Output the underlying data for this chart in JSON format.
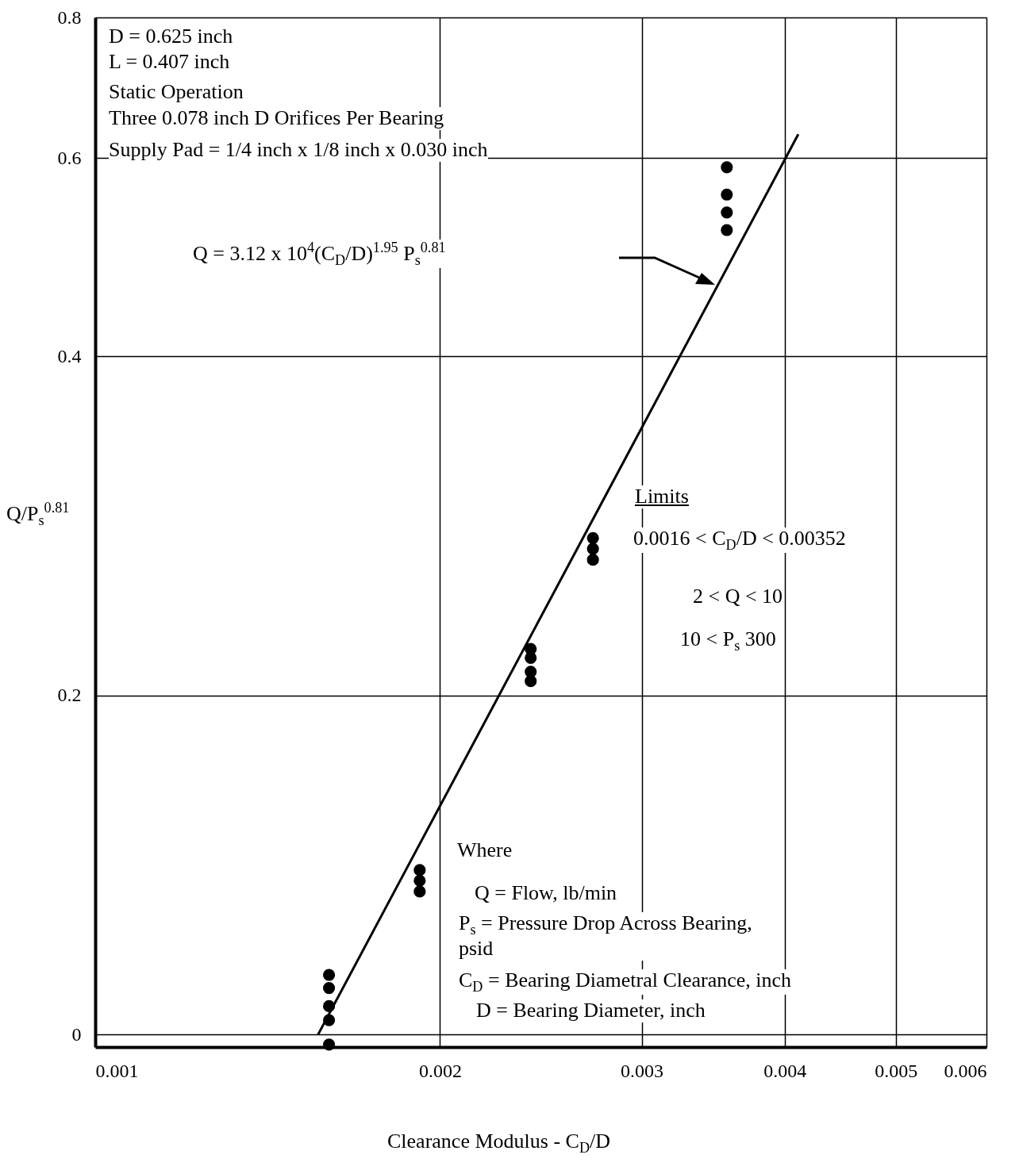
{
  "chart_data": {
    "type": "scatter",
    "xlabel": "Clearance Modulus - C$_{D}$/D",
    "ylabel": "Q/P$_{s}$$^{0.81}$",
    "log": "xy",
    "grid": true,
    "marker": "circle",
    "xlim": [
      0.001,
      0.006
    ],
    "ylim": [
      0.0975,
      0.8
    ],
    "xticks": [
      0.001,
      0.002,
      0.003,
      0.004,
      0.005,
      0.006
    ],
    "yticks": [
      {
        "value": 0.1,
        "label": "0"
      },
      0.2,
      0.4,
      0.6,
      0.8
    ],
    "x": [
      0.0016,
      0.0016,
      0.0016,
      0.0016,
      0.0016,
      0.00192,
      0.00192,
      0.00192,
      0.0024,
      0.0024,
      0.0024,
      0.0024,
      0.00272,
      0.00272,
      0.00272,
      0.00356,
      0.00356,
      0.00356,
      0.00356
    ],
    "series": [
      {
        "color": "#000000",
        "values": [
          0.113,
          0.11,
          0.106,
          0.103,
          0.098,
          0.14,
          0.137,
          0.134,
          0.22,
          0.216,
          0.21,
          0.206,
          0.276,
          0.27,
          0.264,
          0.589,
          0.557,
          0.537,
          0.518
        ]
      },
      {
        "type": "line",
        "marker": "none",
        "color": "#000000",
        "x": [
          0.001565,
          0.00411
        ],
        "values": [
          0.1,
          0.63
        ]
      }
    ],
    "annotations": [
      "D = 0.625 inch",
      "L = 0.407 inch",
      "Static Operation",
      "Three 0.078 inch D Orifices Per Bearing",
      "Supply Pad = 1/4 inch x 1/8 inch x 0.030 inch",
      "Q = 3.12 x 10$^{4}$(C$_{D}$/D)$^{1.95}$ P$_{s}$$^{0.81}$",
      "Limits",
      "0.0016 < C$_{D}$/D < 0.00352",
      "2 < Q < 10",
      "10 < P$_{s}$ 300",
      "Where",
      "Q = Flow, lb/min",
      "P$_{s}$ = Pressure Drop Across Bearing, psid",
      "C$_{D}$ = Bearing Diametral Clearance, inch",
      "D = Bearing Diameter, inch"
    ]
  }
}
